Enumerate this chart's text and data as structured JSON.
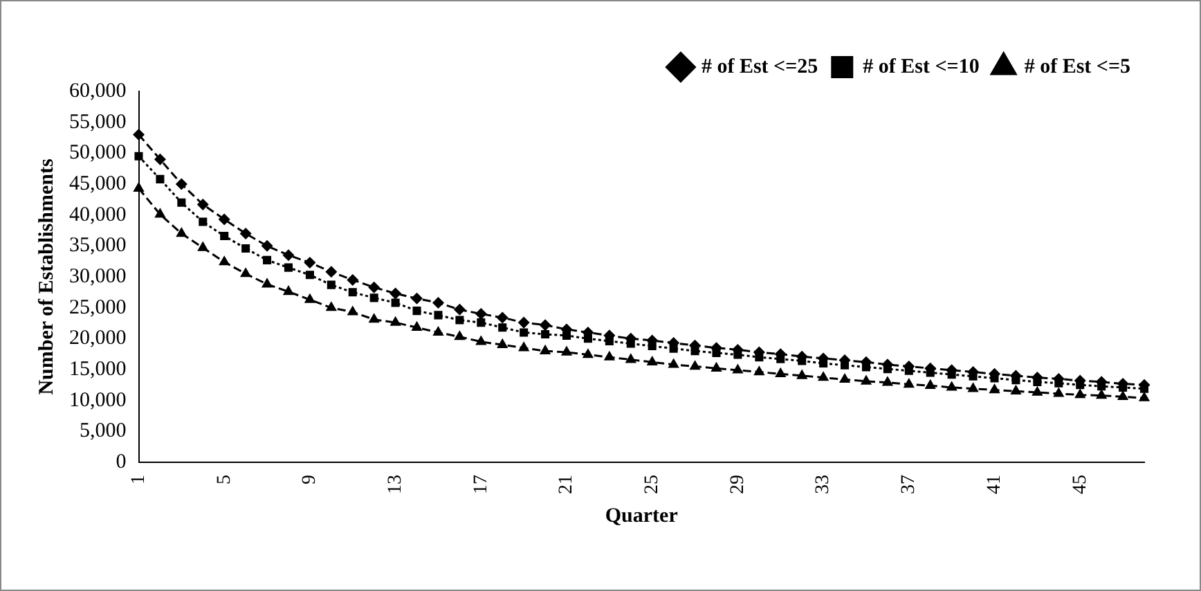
{
  "chart_data": {
    "type": "line",
    "xlabel": "Quarter",
    "ylabel": "Number of Establishments",
    "categories": [
      "1",
      null,
      null,
      null,
      "5",
      null,
      null,
      null,
      "9",
      null,
      null,
      null,
      "13",
      null,
      null,
      null,
      "17",
      null,
      null,
      null,
      "21",
      null,
      null,
      null,
      "25",
      null,
      null,
      null,
      "29",
      null,
      null,
      null,
      "33",
      null,
      null,
      null,
      "37",
      null,
      null,
      null,
      "41",
      null,
      null,
      null,
      "45",
      null,
      null,
      null
    ],
    "ylim": [
      0,
      60000
    ],
    "yticks": [
      0,
      {
        "value": 5000,
        "label": "5,000"
      },
      {
        "value": 10000,
        "label": "10,000"
      },
      {
        "value": 15000,
        "label": "15,000"
      },
      {
        "value": 20000,
        "label": "20,000"
      },
      {
        "value": 25000,
        "label": "25,000"
      },
      {
        "value": 30000,
        "label": "30,000"
      },
      {
        "value": 35000,
        "label": "35,000"
      },
      {
        "value": 40000,
        "label": "40,000"
      },
      {
        "value": 45000,
        "label": "45,000"
      },
      {
        "value": 50000,
        "label": "50,000"
      },
      {
        "value": 55000,
        "label": "55,000"
      },
      {
        "value": 60000,
        "label": "60,000"
      }
    ],
    "grid": false,
    "legend": "top right",
    "series": [
      {
        "name": "# of Est <=25",
        "color": "#000000",
        "marker": "diamond",
        "line_style": "dashed",
        "values": [
          53000,
          49000,
          45000,
          41700,
          39300,
          37000,
          35000,
          33500,
          32300,
          30800,
          29500,
          28300,
          27300,
          26500,
          25800,
          24700,
          24000,
          23400,
          22600,
          22200,
          21500,
          21000,
          20500,
          20000,
          19700,
          19300,
          18900,
          18500,
          18200,
          17800,
          17500,
          17100,
          16800,
          16500,
          16200,
          15800,
          15500,
          15200,
          14900,
          14600,
          14300,
          14000,
          13700,
          13500,
          13200,
          13000,
          12700,
          12500
        ]
      },
      {
        "name": "# of Est <=10",
        "color": "#000000",
        "marker": "square",
        "line_style": "dotted",
        "values": [
          49500,
          45800,
          42000,
          38900,
          36600,
          34600,
          32700,
          31500,
          30300,
          28700,
          27500,
          26600,
          25800,
          24500,
          23800,
          23000,
          22600,
          21800,
          21000,
          20700,
          20500,
          20000,
          19600,
          19200,
          18800,
          18400,
          18000,
          17700,
          17400,
          17000,
          16700,
          16400,
          16000,
          15700,
          15400,
          15100,
          14800,
          14500,
          14200,
          13900,
          13600,
          13300,
          13000,
          12800,
          12500,
          12300,
          12100,
          11900
        ]
      },
      {
        "name": "# of Est <=5",
        "color": "#000000",
        "marker": "triangle",
        "line_style": "dashed",
        "values": [
          44300,
          40100,
          37000,
          34700,
          32400,
          30500,
          28800,
          27600,
          26300,
          25000,
          24300,
          23100,
          22600,
          21800,
          21000,
          20300,
          19500,
          19000,
          18500,
          18000,
          17800,
          17400,
          17000,
          16600,
          16200,
          15800,
          15500,
          15200,
          14900,
          14600,
          14300,
          14000,
          13700,
          13400,
          13100,
          12900,
          12600,
          12400,
          12100,
          11900,
          11700,
          11500,
          11300,
          11100,
          10900,
          10800,
          10600,
          10400
        ]
      }
    ]
  }
}
